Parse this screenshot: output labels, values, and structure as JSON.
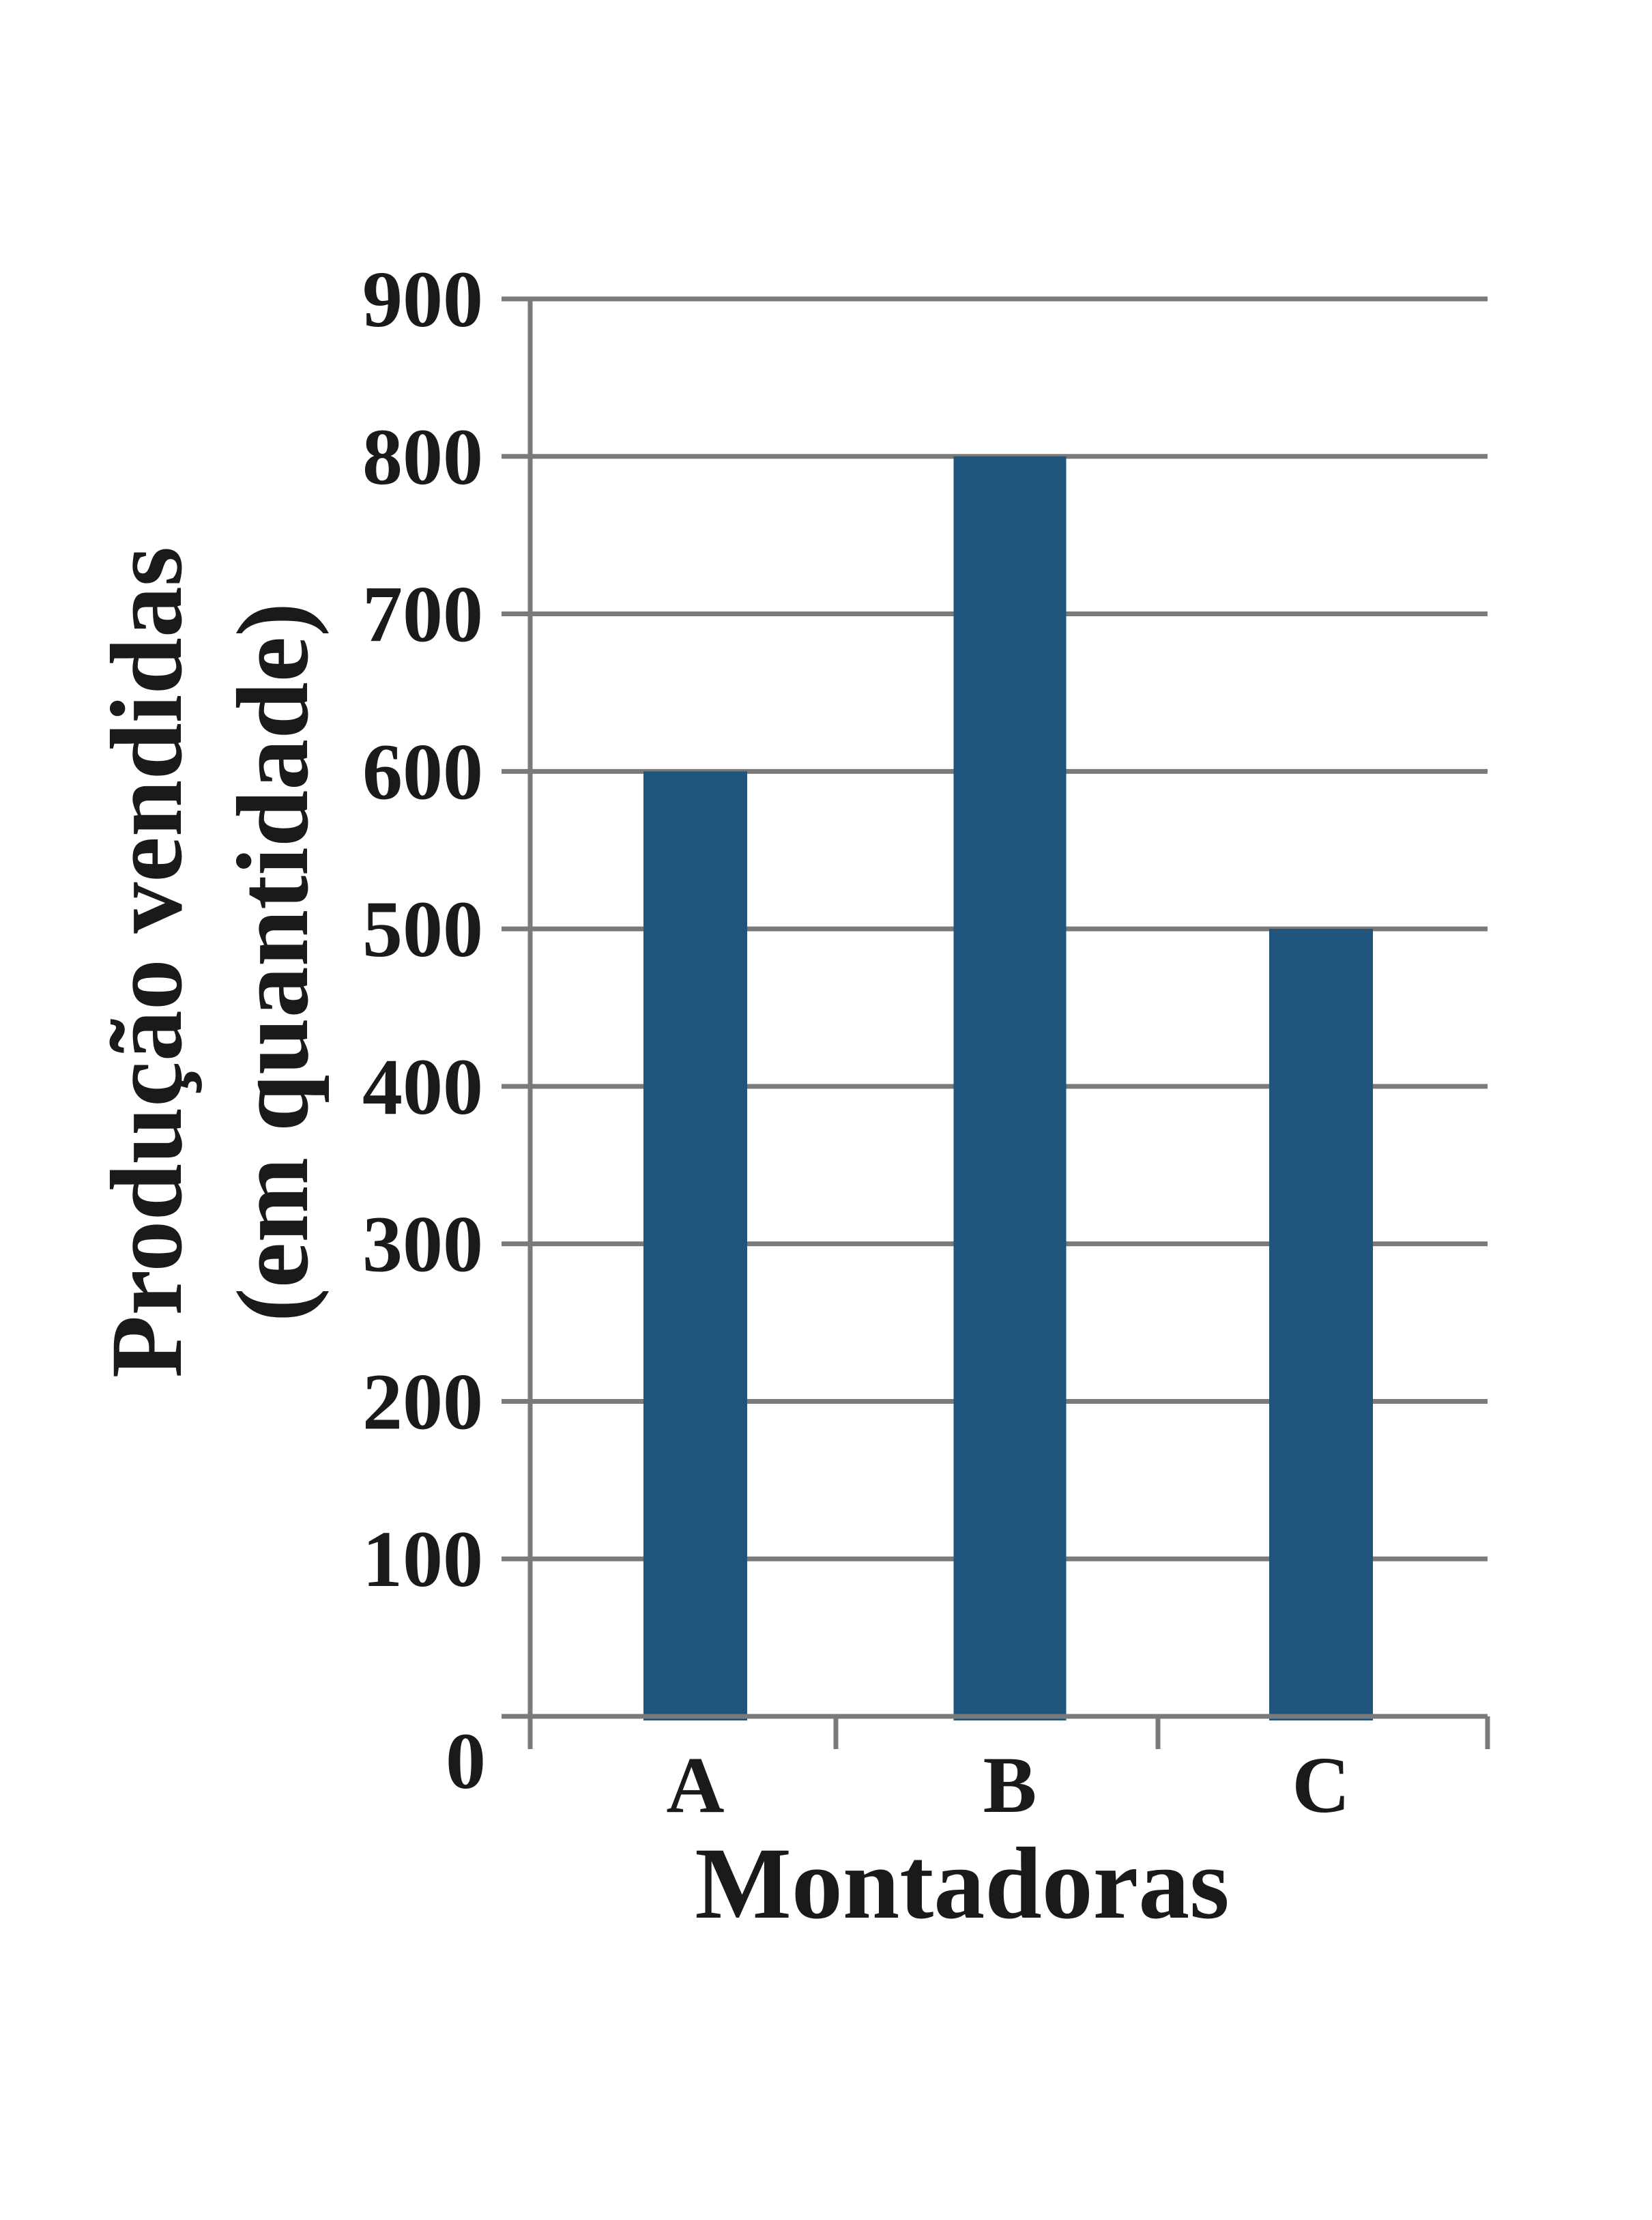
{
  "chart_data": {
    "type": "bar",
    "categories": [
      "A",
      "B",
      "C"
    ],
    "series": [
      {
        "values": [
          600,
          800,
          500
        ]
      }
    ],
    "xlabel": "Montadoras",
    "ylabel_lines": [
      "Produção vendidas",
      "(em quantidade)"
    ],
    "ylim": [
      0,
      900
    ],
    "yticks": [
      "0",
      "100",
      "200",
      "300",
      "400",
      "500",
      "600",
      "700",
      "800",
      "900"
    ],
    "grid": true,
    "legend": "none",
    "bar_color": "#1f557c",
    "grid_color": "#7a7a7a",
    "text_color": "#1a1a1a"
  }
}
